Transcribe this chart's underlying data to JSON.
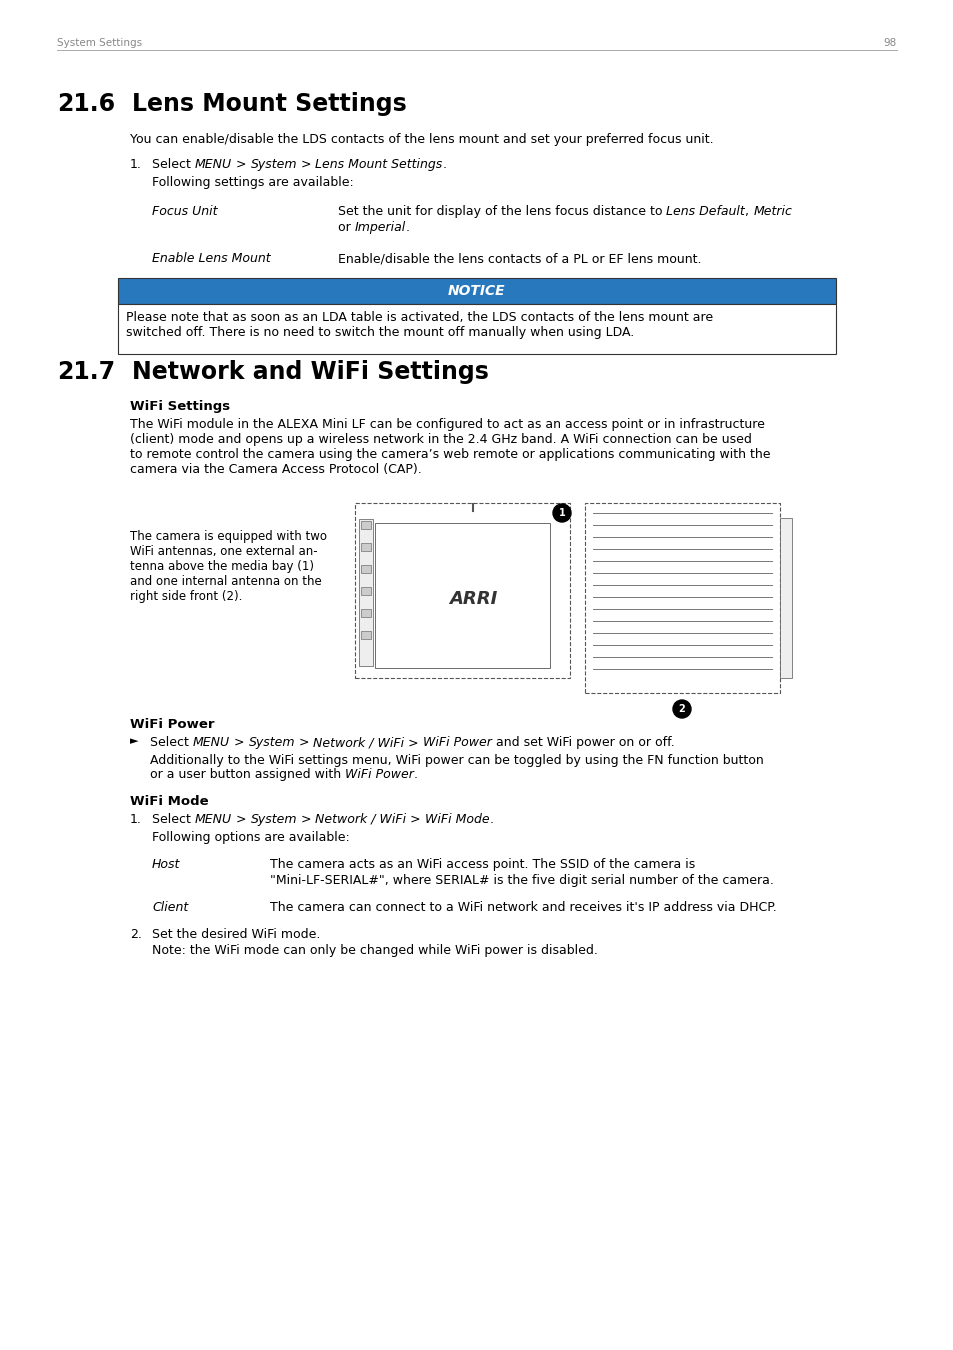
{
  "page_number": "98",
  "header_text": "System Settings",
  "section_6_number": "21.6",
  "section_6_title": "Lens Mount Settings",
  "section_6_intro": "You can enable/disable the LDS contacts of the lens mount and set your preferred focus unit.",
  "following_text": "Following settings are available:",
  "focus_unit_label": "Focus Unit",
  "enable_lens_label": "Enable Lens Mount",
  "enable_lens_desc": "Enable/disable the lens contacts of a PL or EF lens mount.",
  "notice_header": "NOTICE",
  "notice_text": "Please note that as soon as an LDA table is activated, the LDS contacts of the lens mount are\nswitched off. There is no need to switch the mount off manually when using LDA.",
  "notice_header_bg": "#2878be",
  "notice_border_color": "#333333",
  "section_7_number": "21.7",
  "section_7_title": "Network and WiFi Settings",
  "wifi_settings_header": "WiFi Settings",
  "wifi_intro": "The WiFi module in the ALEXA Mini LF can be configured to act as an access point or in infrastructure\n(client) mode and opens up a wireless network in the 2.4 GHz band. A WiFi connection can be used\nto remote control the camera using the camera’s web remote or applications communicating with the\ncamera via the Camera Access Protocol (CAP).",
  "camera_antenna_text": "The camera is equipped with two\nWiFi antennas, one external an-\ntenna above the media bay (1)\nand one internal antenna on the\nright side front (2).",
  "wifi_power_header": "WiFi Power",
  "wifi_mode_header": "WiFi Mode",
  "wifi_mode_following": "Following options are available:",
  "host_label": "Host",
  "host_desc_line1": "The camera acts as an WiFi access point. The SSID of the camera is",
  "host_desc_line2": "\"Mini-LF-SERIAL#\", where SERIAL# is the five digit serial number of the camera.",
  "client_label": "Client",
  "client_desc": "The camera can connect to a WiFi network and receives it's IP address via DHCP.",
  "wifi_mode_step2": "Set the desired WiFi mode.",
  "wifi_mode_note": "Note: the WiFi mode can only be changed while WiFi power is disabled.",
  "bg_color": "#ffffff",
  "font_family": "DejaVu Sans"
}
